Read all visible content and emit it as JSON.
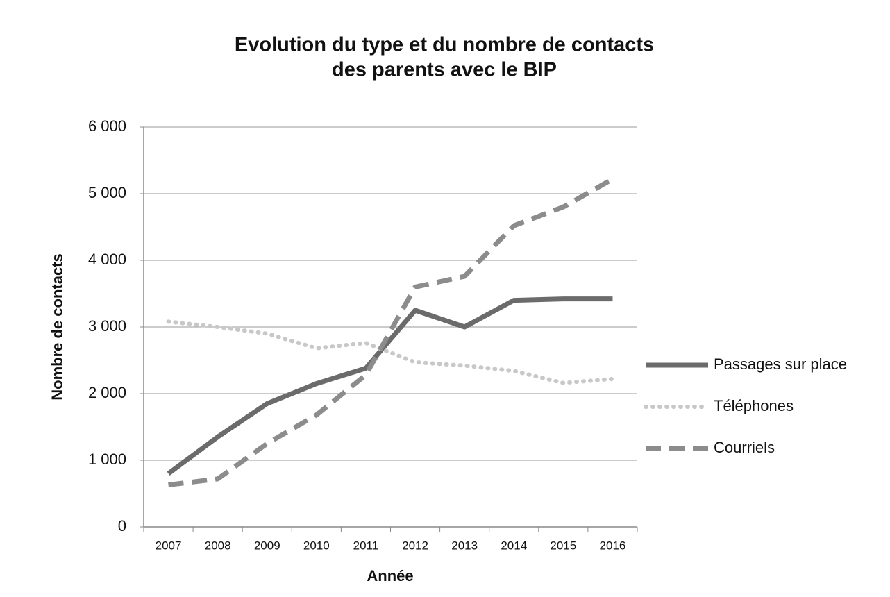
{
  "chart_data": {
    "type": "line",
    "title": [
      "Evolution du type et du nombre de contacts",
      "des parents avec le BIP"
    ],
    "xlabel": "Année",
    "ylabel": "Nombre de contacts",
    "categories": [
      "2007",
      "2008",
      "2009",
      "2010",
      "2011",
      "2012",
      "2013",
      "2014",
      "2015",
      "2016"
    ],
    "series": [
      {
        "name": "Passages sur place",
        "color": "#6b6b6b",
        "dash": "solid",
        "values": [
          800,
          1350,
          1850,
          2150,
          2380,
          3250,
          3000,
          3400,
          3420,
          3420
        ]
      },
      {
        "name": "Téléphones",
        "color": "#c8c8c8",
        "dash": "dotted",
        "values": [
          3080,
          3000,
          2900,
          2680,
          2760,
          2470,
          2420,
          2340,
          2160,
          2220
        ]
      },
      {
        "name": "Courriels",
        "color": "#8c8c8c",
        "dash": "dashed",
        "values": [
          630,
          720,
          1250,
          1680,
          2280,
          3600,
          3760,
          4520,
          4800,
          5220
        ]
      }
    ],
    "ylim": [
      0,
      6000
    ],
    "yticks": [
      0,
      {
        "value": 1000,
        "label": "1 000"
      },
      {
        "value": 2000,
        "label": "2 000"
      },
      {
        "value": 3000,
        "label": "3 000"
      },
      {
        "value": 4000,
        "label": "4 000"
      },
      {
        "value": 5000,
        "label": "5 000"
      },
      {
        "value": 6000,
        "label": "6 000"
      }
    ],
    "grid": true,
    "legend": "right"
  }
}
